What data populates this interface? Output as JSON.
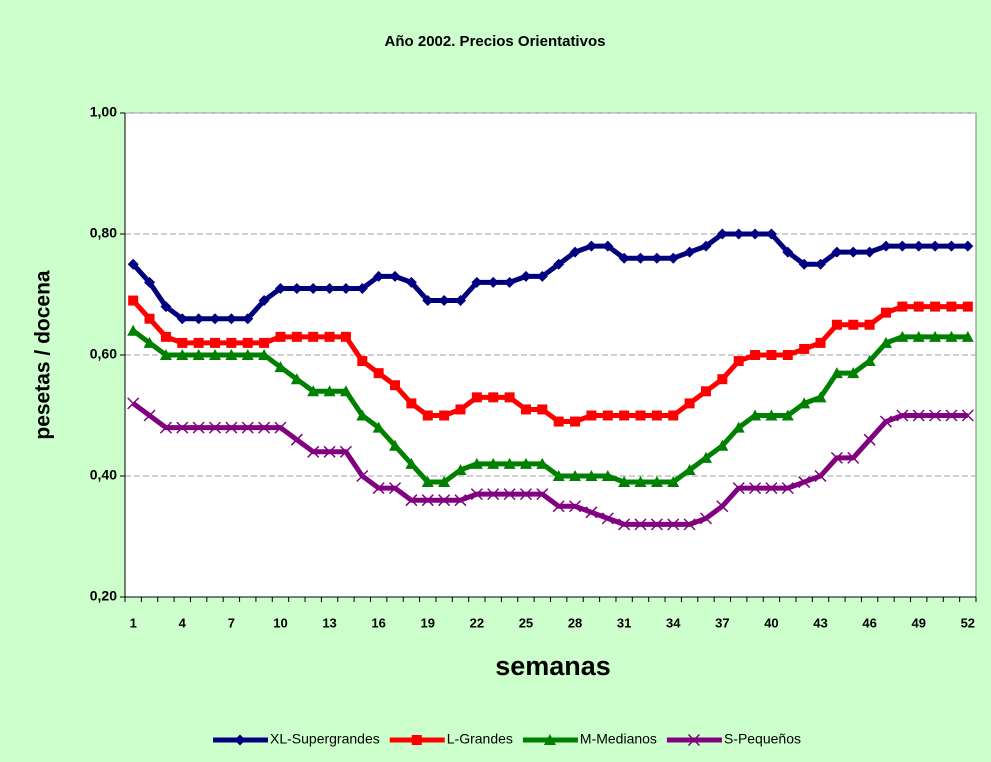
{
  "chart_data": {
    "type": "line",
    "title": "Año 2002. Precios Orientativos",
    "x_label": "semanas",
    "y_label": "pesetas / docena",
    "categories": [
      1,
      null,
      null,
      4,
      null,
      null,
      7,
      null,
      null,
      10,
      null,
      null,
      13,
      null,
      null,
      16,
      null,
      null,
      19,
      null,
      null,
      22,
      null,
      null,
      25,
      null,
      null,
      28,
      null,
      null,
      31,
      null,
      null,
      34,
      null,
      null,
      37,
      null,
      null,
      40,
      null,
      null,
      43,
      null,
      null,
      46,
      null,
      null,
      49,
      null,
      null,
      52
    ],
    "ylim": [
      0.2,
      1.0
    ],
    "yticks": [
      {
        "value": 0.2,
        "label": "0,20"
      },
      {
        "value": 0.4,
        "label": "0,40"
      },
      {
        "value": 0.6,
        "label": "0,60"
      },
      {
        "value": 0.8,
        "label": "0,80"
      },
      {
        "value": 1.0,
        "label": "1,00"
      }
    ],
    "grid": true,
    "legend": "bottom",
    "series": [
      {
        "name": "XL-Supergrandes",
        "color": "#00007f",
        "marker": "diamond",
        "values": [
          0.75,
          0.72,
          0.68,
          0.66,
          0.66,
          0.66,
          0.66,
          0.66,
          0.69,
          0.71,
          0.71,
          0.71,
          0.71,
          0.71,
          0.71,
          0.73,
          0.73,
          0.72,
          0.69,
          0.69,
          0.69,
          0.72,
          0.72,
          0.72,
          0.73,
          0.73,
          0.75,
          0.77,
          0.78,
          0.78,
          0.76,
          0.76,
          0.76,
          0.76,
          0.77,
          0.78,
          0.8,
          0.8,
          0.8,
          0.8,
          0.77,
          0.75,
          0.75,
          0.77,
          0.77,
          0.77,
          0.78,
          0.78,
          0.78,
          0.78,
          0.78,
          0.78
        ]
      },
      {
        "name": "L-Grandes",
        "color": "#ff0000",
        "marker": "square",
        "values": [
          0.69,
          0.66,
          0.63,
          0.62,
          0.62,
          0.62,
          0.62,
          0.62,
          0.62,
          0.63,
          0.63,
          0.63,
          0.63,
          0.63,
          0.59,
          0.57,
          0.55,
          0.52,
          0.5,
          0.5,
          0.51,
          0.53,
          0.53,
          0.53,
          0.51,
          0.51,
          0.49,
          0.49,
          0.5,
          0.5,
          0.5,
          0.5,
          0.5,
          0.5,
          0.52,
          0.54,
          0.56,
          0.59,
          0.6,
          0.6,
          0.6,
          0.61,
          0.62,
          0.65,
          0.65,
          0.65,
          0.67,
          0.68,
          0.68,
          0.68,
          0.68,
          0.68
        ]
      },
      {
        "name": "M-Medianos",
        "color": "#008000",
        "marker": "triangle",
        "values": [
          0.64,
          0.62,
          0.6,
          0.6,
          0.6,
          0.6,
          0.6,
          0.6,
          0.6,
          0.58,
          0.56,
          0.54,
          0.54,
          0.54,
          0.5,
          0.48,
          0.45,
          0.42,
          0.39,
          0.39,
          0.41,
          0.42,
          0.42,
          0.42,
          0.42,
          0.42,
          0.4,
          0.4,
          0.4,
          0.4,
          0.39,
          0.39,
          0.39,
          0.39,
          0.41,
          0.43,
          0.45,
          0.48,
          0.5,
          0.5,
          0.5,
          0.52,
          0.53,
          0.57,
          0.57,
          0.59,
          0.62,
          0.63,
          0.63,
          0.63,
          0.63,
          0.63
        ]
      },
      {
        "name": "S-Pequeños",
        "color": "#800080",
        "marker": "x",
        "values": [
          0.52,
          0.5,
          0.48,
          0.48,
          0.48,
          0.48,
          0.48,
          0.48,
          0.48,
          0.48,
          0.46,
          0.44,
          0.44,
          0.44,
          0.4,
          0.38,
          0.38,
          0.36,
          0.36,
          0.36,
          0.36,
          0.37,
          0.37,
          0.37,
          0.37,
          0.37,
          0.35,
          0.35,
          0.34,
          0.33,
          0.32,
          0.32,
          0.32,
          0.32,
          0.32,
          0.33,
          0.35,
          0.38,
          0.38,
          0.38,
          0.38,
          0.39,
          0.4,
          0.43,
          0.43,
          0.46,
          0.49,
          0.5,
          0.5,
          0.5,
          0.5,
          0.5
        ]
      }
    ]
  }
}
